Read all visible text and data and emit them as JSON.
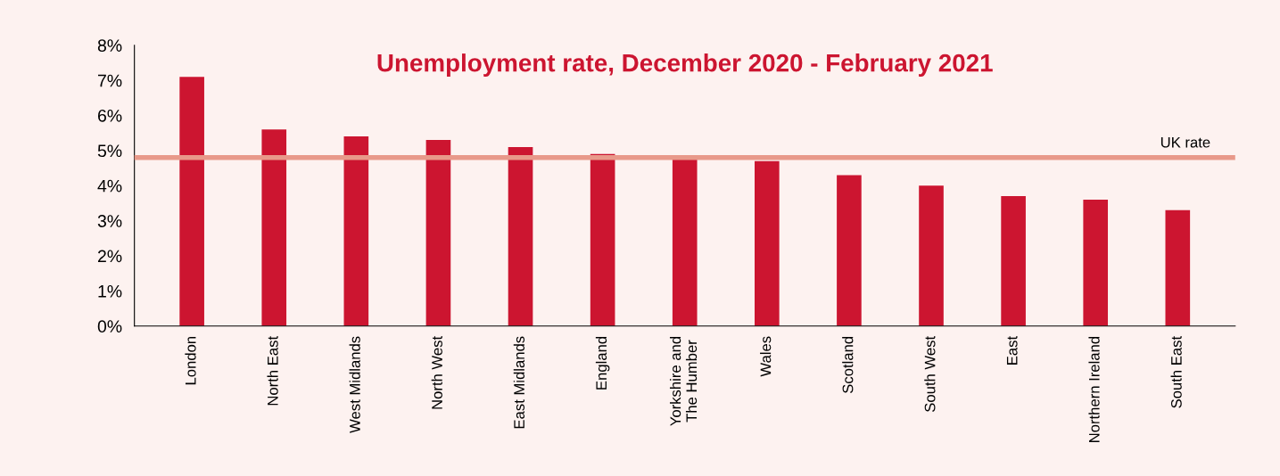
{
  "chart_data": {
    "type": "bar",
    "title": "Unemployment rate, December 2020 - February 2021",
    "categories": [
      "London",
      "North East",
      "West Midlands",
      "North West",
      "East Midlands",
      "England",
      "Yorkshire and\nThe Humber",
      "Wales",
      "Scotland",
      "South West",
      "East",
      "Northern Ireland",
      "South East"
    ],
    "values": [
      7.1,
      5.6,
      5.4,
      5.3,
      5.1,
      4.9,
      4.8,
      4.7,
      4.3,
      4.0,
      3.7,
      3.6,
      3.3
    ],
    "color": "#cc1530",
    "ylim": [
      0,
      8
    ],
    "yticks": [
      {
        "value": 0,
        "label": "0%"
      },
      {
        "value": 1,
        "label": "1%"
      },
      {
        "value": 2,
        "label": "2%"
      },
      {
        "value": 3,
        "label": "3%"
      },
      {
        "value": 4,
        "label": "4%"
      },
      {
        "value": 5,
        "label": "5%"
      },
      {
        "value": 6,
        "label": "6%"
      },
      {
        "value": 7,
        "label": "7%"
      },
      {
        "value": 8,
        "label": "8%"
      }
    ],
    "ref_lines": [
      {
        "axis": "y",
        "value": 4.8,
        "label": "UK rate",
        "color": "#e8998a"
      }
    ],
    "grid": false,
    "legend": false
  }
}
